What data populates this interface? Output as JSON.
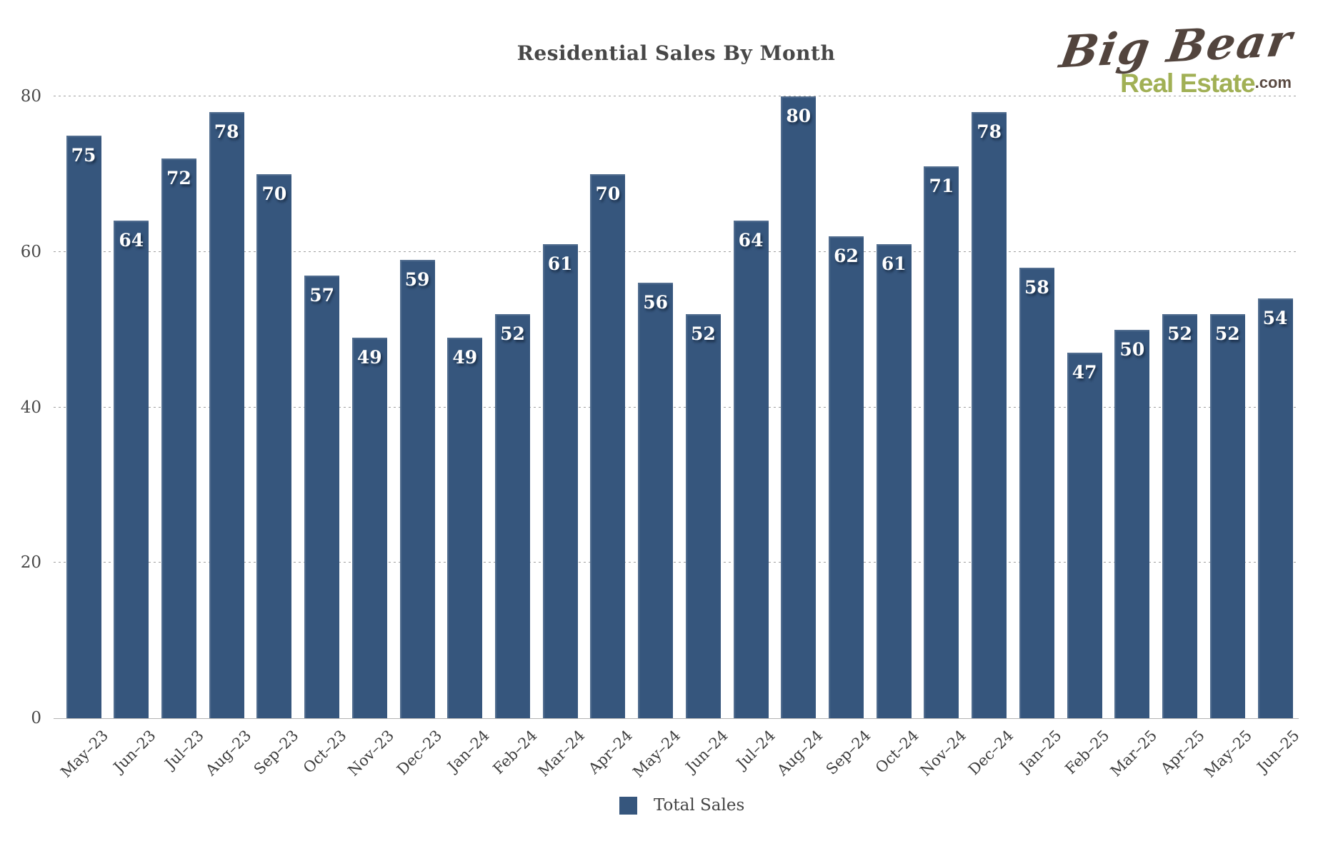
{
  "title": "Residential Sales By Month",
  "logo": {
    "script_text": "Big Bear",
    "sub_text": "Real Estate",
    "suffix": ".com"
  },
  "legend": {
    "label": "Total Sales"
  },
  "colors": {
    "bar": "#36567D",
    "title": "#474747",
    "grid": "#9f9f9f",
    "axis": "#b3b3b3",
    "value_label": "#ffffff",
    "logo_brown": "#52443d",
    "logo_green": "#a1b055"
  },
  "chart_data": {
    "type": "bar",
    "title": "Residential Sales By Month",
    "series_name": "Total Sales",
    "categories": [
      "May–23",
      "Jun–23",
      "Jul–23",
      "Aug–23",
      "Sep–23",
      "Oct–23",
      "Nov–23",
      "Dec–23",
      "Jan–24",
      "Feb–24",
      "Mar–24",
      "Apr–24",
      "May–24",
      "Jun–24",
      "Jul–24",
      "Aug–24",
      "Sep–24",
      "Oct–24",
      "Nov–24",
      "Dec–24",
      "Jan–25",
      "Feb–25",
      "Mar–25",
      "Apr–25",
      "May–25",
      "Jun–25"
    ],
    "values": [
      75,
      64,
      72,
      78,
      70,
      57,
      49,
      59,
      49,
      52,
      61,
      70,
      56,
      52,
      64,
      80,
      62,
      61,
      71,
      78,
      58,
      47,
      50,
      52,
      52,
      54
    ],
    "xlabel": "",
    "ylabel": "",
    "ylim": [
      0,
      80
    ],
    "yticks": [
      0,
      20,
      40,
      60,
      80
    ],
    "grid": "horizontal-dotted",
    "legend_position": "bottom-center",
    "bar_labels": "inside-top"
  }
}
